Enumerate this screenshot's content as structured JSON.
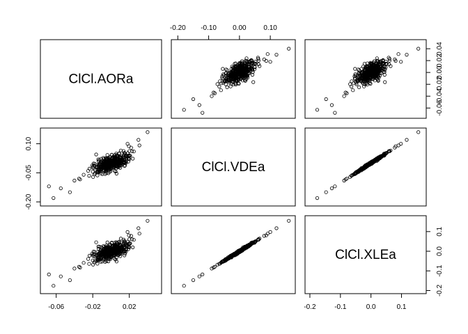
{
  "chart_data": {
    "type": "scatter",
    "variables": [
      "ClCl.AORa",
      "ClCl.VDEa",
      "ClCl.XLEa"
    ],
    "ranges": {
      "ClCl.AORa": [
        -0.072,
        0.05
      ],
      "ClCl.VDEa": [
        -0.205,
        0.165
      ],
      "ClCl.XLEa": [
        -0.2,
        0.165
      ]
    },
    "axes": {
      "top": {
        "panel_col": 1,
        "variable": "ClCl.VDEa",
        "ticks": [
          -0.2,
          -0.1,
          0.0,
          0.1
        ],
        "labels": [
          "-0.20",
          "-0.10",
          "0.00",
          "0.10"
        ]
      },
      "right0": {
        "panel_row": 0,
        "variable": "ClCl.AORa",
        "ticks": [
          0.04,
          0.02,
          0.0,
          -0.02,
          -0.04,
          -0.06
        ],
        "labels": [
          "0.04",
          "0.02",
          "0.00",
          "-0.02",
          "-0.04",
          "-0.06"
        ]
      },
      "left1": {
        "panel_row": 1,
        "variable": "ClCl.VDEa",
        "ticks": [
          0.1,
          -0.05,
          -0.2
        ],
        "labels": [
          "0.10",
          "-0.05",
          "-0.20"
        ]
      },
      "right2": {
        "panel_row": 2,
        "variable": "ClCl.XLEa",
        "ticks": [
          0.1,
          0.0,
          -0.1,
          -0.2
        ],
        "labels": [
          "0.1",
          "0.0",
          "-0.1",
          "-0.2"
        ]
      },
      "bottom0": {
        "panel_col": 0,
        "variable": "ClCl.AORa",
        "ticks": [
          -0.06,
          -0.02,
          0.02
        ],
        "labels": [
          "-0.06",
          "-0.02",
          "0.02"
        ]
      },
      "bottom2": {
        "panel_col": 2,
        "variable": "ClCl.XLEa",
        "ticks": [
          -0.2,
          -0.1,
          0.0,
          0.1
        ],
        "labels": [
          "-0.2",
          "-0.1",
          "0.0",
          "0.1"
        ]
      }
    },
    "observations": {
      "ClCl.AORa": [
        -0.068,
        -0.063,
        -0.055,
        -0.045,
        -0.04,
        -0.035,
        0.04,
        0.03,
        0.025,
        0.022,
        0.02,
        0.018,
        -0.03,
        -0.025,
        0.015,
        0.01,
        -0.02,
        0.005,
        -0.01,
        0.0
      ],
      "ClCl.VDEa": [
        -0.12,
        -0.18,
        -0.13,
        -0.15,
        -0.09,
        -0.08,
        0.16,
        0.12,
        0.06,
        0.08,
        0.02,
        0.1,
        -0.06,
        -0.04,
        0.05,
        0.03,
        -0.02,
        0.01,
        -0.01,
        0.0
      ],
      "ClCl.XLEa": [
        -0.118,
        -0.176,
        -0.128,
        -0.147,
        -0.088,
        -0.079,
        0.155,
        0.117,
        0.058,
        0.078,
        0.02,
        0.098,
        -0.059,
        -0.039,
        0.049,
        0.03,
        -0.02,
        0.01,
        -0.01,
        0.0
      ]
    },
    "cloud": {
      "n": 380,
      "means": {
        "ClCl.AORa": 0.0,
        "ClCl.VDEa": 0.0,
        "ClCl.XLEa": 0.0
      },
      "sds": {
        "ClCl.AORa": 0.01,
        "ClCl.VDEa": 0.026,
        "ClCl.XLEa": 0.025
      },
      "corr_AORa_VDEa": 0.6
    }
  }
}
